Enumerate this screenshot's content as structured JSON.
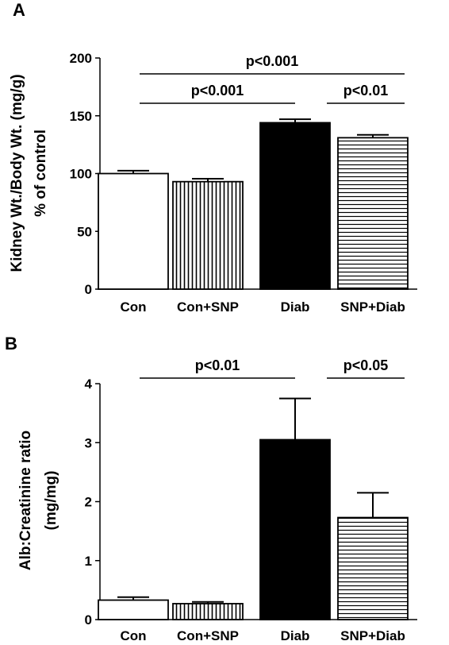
{
  "chart_data": [
    {
      "panel_label": "A",
      "type": "bar",
      "categories": [
        "Con",
        "Con+SNP",
        "Diab",
        "SNP+Diab"
      ],
      "values": [
        100,
        93,
        144,
        131
      ],
      "errors": [
        2.5,
        2.5,
        3,
        2.5
      ],
      "fills": [
        "white",
        "vertical-stripes",
        "black",
        "horizontal-stripes"
      ],
      "ylabel_lines": [
        "Kidney Wt./Body Wt. (mg/g)",
        "% of control"
      ],
      "ylim": [
        0,
        200
      ],
      "yticks": [
        0,
        50,
        100,
        150,
        200
      ],
      "annotations": [
        {
          "text": "p<0.001",
          "from": 0,
          "to": 3,
          "level": 2
        },
        {
          "text": "p<0.001",
          "from": 0,
          "to": 2,
          "level": 1
        },
        {
          "text": "p<0.01",
          "from": 2,
          "to": 3,
          "level": 1
        }
      ]
    },
    {
      "panel_label": "B",
      "type": "bar",
      "categories": [
        "Con",
        "Con+SNP",
        "Diab",
        "SNP+Diab"
      ],
      "values": [
        0.33,
        0.27,
        3.05,
        1.73
      ],
      "errors": [
        0.05,
        0.03,
        0.7,
        0.42
      ],
      "fills": [
        "white",
        "vertical-stripes",
        "black",
        "horizontal-stripes"
      ],
      "ylabel_lines": [
        "Alb:Creatinine ratio",
        "(mg/mg)"
      ],
      "ylim": [
        0,
        4
      ],
      "yticks": [
        0,
        1,
        2,
        3,
        4
      ],
      "annotations": [
        {
          "text": "p<0.01",
          "from": 0,
          "to": 2,
          "level": 1
        },
        {
          "text": "p<0.05",
          "from": 2,
          "to": 3,
          "level": 1
        }
      ]
    }
  ]
}
